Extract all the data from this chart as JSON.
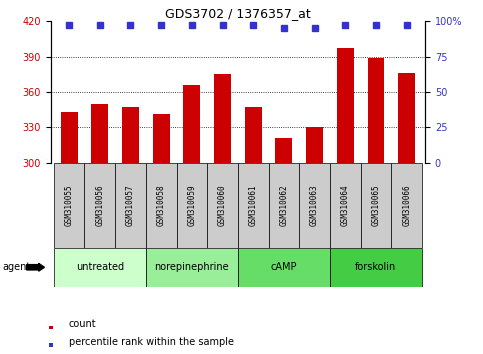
{
  "title": "GDS3702 / 1376357_at",
  "samples": [
    "GSM310055",
    "GSM310056",
    "GSM310057",
    "GSM310058",
    "GSM310059",
    "GSM310060",
    "GSM310061",
    "GSM310062",
    "GSM310063",
    "GSM310064",
    "GSM310065",
    "GSM310066"
  ],
  "counts": [
    343,
    350,
    347,
    341,
    366,
    375,
    347,
    321,
    330,
    397,
    389,
    376
  ],
  "percentile_ranks": [
    97,
    97,
    97,
    97,
    97,
    97,
    97,
    95,
    95,
    97,
    97,
    97
  ],
  "bar_color": "#cc0000",
  "dot_color": "#3333cc",
  "ylim_left": [
    300,
    420
  ],
  "ylim_right": [
    0,
    100
  ],
  "yticks_left": [
    300,
    330,
    360,
    390,
    420
  ],
  "yticks_right": [
    0,
    25,
    50,
    75,
    100
  ],
  "groups": [
    {
      "label": "untreated",
      "start": 0,
      "end": 3,
      "color": "#ccffcc"
    },
    {
      "label": "norepinephrine",
      "start": 3,
      "end": 6,
      "color": "#99ee99"
    },
    {
      "label": "cAMP",
      "start": 6,
      "end": 9,
      "color": "#66dd66"
    },
    {
      "label": "forskolin",
      "start": 9,
      "end": 12,
      "color": "#44cc44"
    }
  ],
  "sample_box_color": "#cccccc",
  "background_color": "#ffffff",
  "tick_label_color_left": "#cc0000",
  "tick_label_color_right": "#3333cc",
  "legend_count_color": "#cc0000",
  "legend_dot_color": "#3333cc"
}
